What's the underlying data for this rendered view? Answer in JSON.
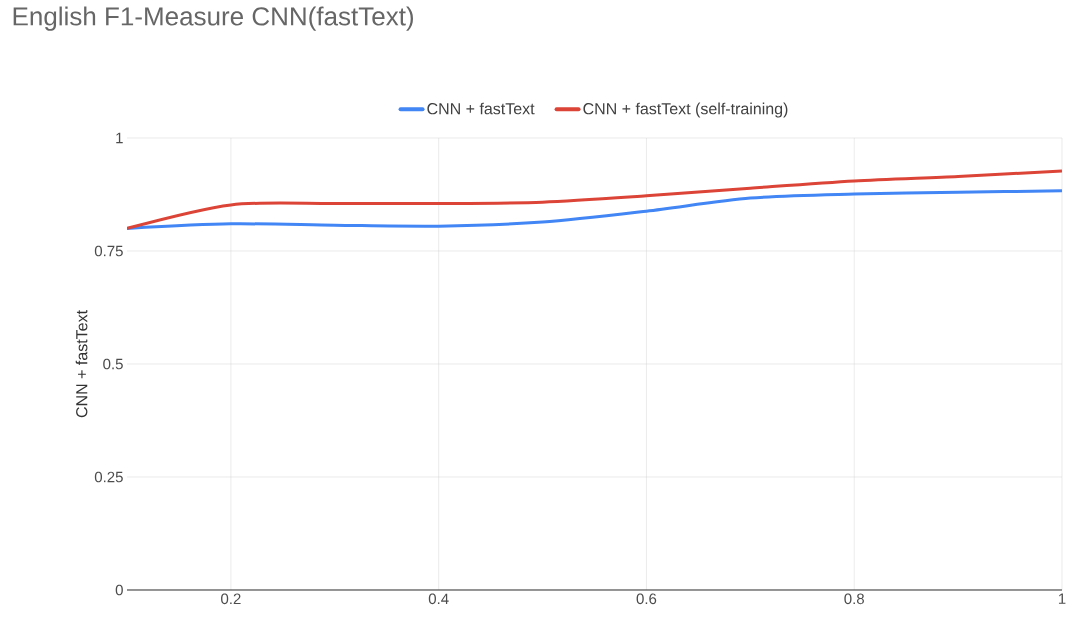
{
  "chart_data": {
    "type": "line",
    "title": "English F1-Measure CNN(fastText)",
    "ylabel": "CNN + fastText",
    "x": [
      0.1,
      0.2,
      0.3,
      0.4,
      0.5,
      0.6,
      0.7,
      0.8,
      0.9,
      1
    ],
    "series": [
      {
        "name": "CNN + fastText",
        "color": "#4285f4",
        "values": [
          0.8,
          0.81,
          0.807,
          0.805,
          0.814,
          0.838,
          0.867,
          0.876,
          0.88,
          0.883
        ]
      },
      {
        "name": "CNN + fastText (self-training)",
        "color": "#db4437",
        "values": [
          0.8,
          0.852,
          0.855,
          0.855,
          0.858,
          0.872,
          0.889,
          0.905,
          0.915,
          0.927
        ]
      }
    ],
    "xlim": [
      0.1,
      1
    ],
    "xticks": [
      0.2,
      0.4,
      0.6,
      0.8,
      1
    ],
    "ylim": [
      0,
      1
    ],
    "yticks": [
      0,
      0.25,
      0.5,
      0.75,
      1
    ],
    "grid": true,
    "legend": "top",
    "marker": "none",
    "line_style": "solid"
  }
}
